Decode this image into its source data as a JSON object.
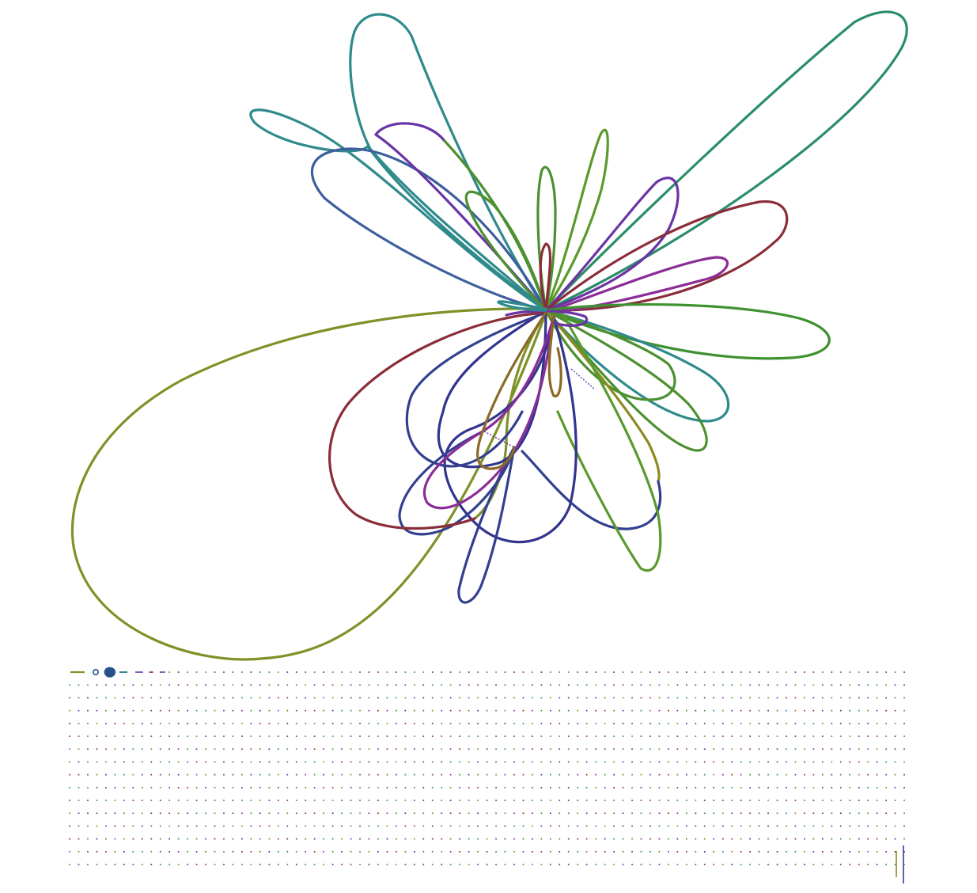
{
  "palette": {
    "olive": "#7e9228",
    "teal": "#2f8a8c",
    "sea_green": "#2a8d6a",
    "purple": "#6a34a4",
    "navy": "#33408f",
    "steel_blue": "#3d5f9e",
    "green": "#4c9030",
    "leaf_green": "#5a9a2c",
    "forest_green": "#3f9130",
    "crimson": "#8a2d3a",
    "magenta": "#8a2d96",
    "indigo": "#32348f",
    "mustard": "#8d8a22",
    "brown": "#8a6a26",
    "legend_blue": "#28518c"
  },
  "diagram": {
    "kind": "multi-loop flower / rose curve",
    "loop_count": 26
  },
  "legend_grid": {
    "rows": 16,
    "columns": 93,
    "dot_colors": [
      "#6a34a4",
      "#4c9030",
      "#2f8a8c",
      "#8a2d3a",
      "#33408f",
      "#8d8a22",
      "#8a2d96",
      "#3f9130"
    ],
    "lead_items": [
      "olive-line",
      "ring-marker",
      "blob-marker",
      "dash-line"
    ]
  }
}
